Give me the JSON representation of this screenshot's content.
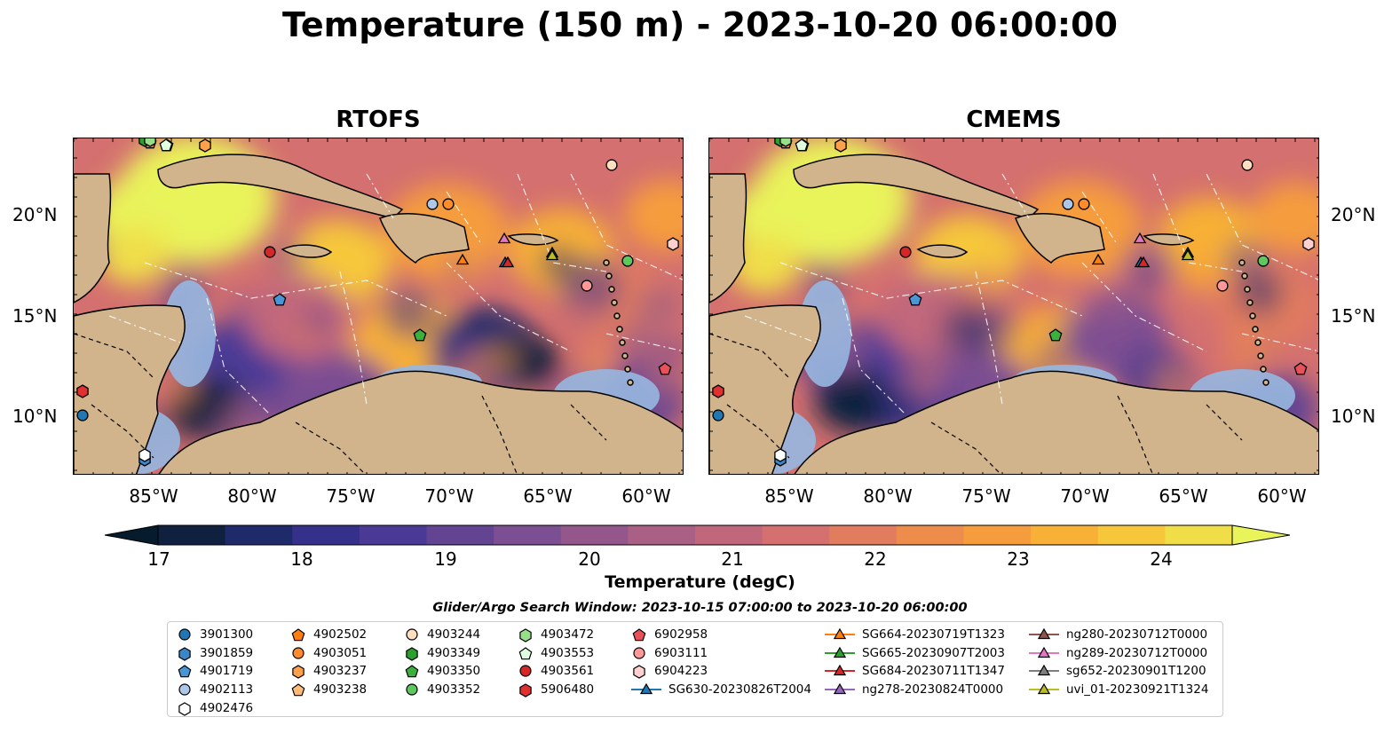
{
  "title": "Temperature (150 m) - 2023-10-20 06:00:00",
  "panels": [
    {
      "title": "RTOFS"
    },
    {
      "title": "CMEMS"
    }
  ],
  "axes": {
    "lat_ticks": [
      "20°N",
      "15°N",
      "10°N"
    ],
    "lon_ticks": [
      "85°W",
      "80°W",
      "75°W",
      "70°W",
      "65°W",
      "60°W"
    ]
  },
  "colorbar": {
    "label": "Temperature (degC)",
    "ticks": [
      "17",
      "18",
      "19",
      "20",
      "21",
      "22",
      "23",
      "24"
    ],
    "range": [
      16.75,
      24.75
    ],
    "colormap": [
      "#061b2c",
      "#10203f",
      "#1f2a6b",
      "#35308a",
      "#4b3a95",
      "#634493",
      "#7c4e92",
      "#93578c",
      "#aa5f85",
      "#c1677b",
      "#d4706f",
      "#e27c5f",
      "#ee8c4c",
      "#f59d3c",
      "#f8b036",
      "#f6c73a",
      "#f0de48",
      "#e9f35a"
    ]
  },
  "search_window": "Glider/Argo Search Window: 2023-10-15 07:00:00 to 2023-10-20 06:00:00",
  "land_color": "#d2b48c",
  "shelf_color": "#97b7e0",
  "legend": [
    {
      "label": "3901300",
      "shape": "circle",
      "color": "#1f77b4"
    },
    {
      "label": "3901859",
      "shape": "hexagon",
      "color": "#3a86c8"
    },
    {
      "label": "4901719",
      "shape": "pentagon",
      "color": "#4a95d6"
    },
    {
      "label": "4902113",
      "shape": "circle",
      "color": "#aec7e8"
    },
    {
      "label": "4902476",
      "shape": "hexagon",
      "color": "#ffffff"
    },
    {
      "label": "4902502",
      "shape": "pentagon",
      "color": "#ff7f0e"
    },
    {
      "label": "4903051",
      "shape": "circle",
      "color": "#ff8c2a"
    },
    {
      "label": "4903237",
      "shape": "hexagon",
      "color": "#ffa04d"
    },
    {
      "label": "4903238",
      "shape": "pentagon",
      "color": "#ffbb78"
    },
    {
      "label": "4903244",
      "shape": "circle",
      "color": "#ffdfc0"
    },
    {
      "label": "4903349",
      "shape": "hexagon",
      "color": "#2ca02c"
    },
    {
      "label": "4903350",
      "shape": "pentagon",
      "color": "#3cb03c"
    },
    {
      "label": "4903352",
      "shape": "circle",
      "color": "#5ec85e"
    },
    {
      "label": "4903472",
      "shape": "hexagon",
      "color": "#98df8a"
    },
    {
      "label": "4903553",
      "shape": "pentagon",
      "color": "#e0ffe0"
    },
    {
      "label": "4903561",
      "shape": "circle",
      "color": "#d62728"
    },
    {
      "label": "5906480",
      "shape": "hexagon",
      "color": "#e03030"
    },
    {
      "label": "6902958",
      "shape": "pentagon",
      "color": "#e8505a"
    },
    {
      "label": "6903111",
      "shape": "circle",
      "color": "#ff9896"
    },
    {
      "label": "6904223",
      "shape": "hexagon",
      "color": "#ffd0d0"
    },
    {
      "label": "SG630-20230826T2004",
      "shape": "triangle-line",
      "color": "#1f77b4"
    },
    {
      "label": "SG664-20230719T1323",
      "shape": "triangle-line",
      "color": "#ff7f0e"
    },
    {
      "label": "SG665-20230907T2003",
      "shape": "triangle-line",
      "color": "#2ca02c"
    },
    {
      "label": "SG684-20230711T1347",
      "shape": "triangle-line",
      "color": "#d62728"
    },
    {
      "label": "ng278-20230824T0000",
      "shape": "triangle-line",
      "color": "#9467bd"
    },
    {
      "label": "ng280-20230712T0000",
      "shape": "triangle-line",
      "color": "#8c564b"
    },
    {
      "label": "ng289-20230712T0000",
      "shape": "triangle-line",
      "color": "#e377c2"
    },
    {
      "label": "sg652-20230901T1200",
      "shape": "triangle-line",
      "color": "#7f7f7f"
    },
    {
      "label": "uvi_01-20230921T1324",
      "shape": "triangle-line",
      "color": "#bcbd22"
    }
  ]
}
